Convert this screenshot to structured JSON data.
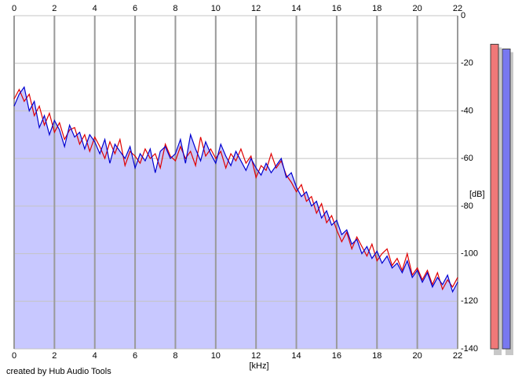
{
  "chart_data": {
    "type": "spectrum",
    "x": [
      0,
      0.25,
      0.5,
      0.75,
      1,
      1.25,
      1.5,
      1.75,
      2,
      2.25,
      2.5,
      2.75,
      3,
      3.25,
      3.5,
      3.75,
      4,
      4.25,
      4.5,
      4.75,
      5,
      5.25,
      5.5,
      5.75,
      6,
      6.25,
      6.5,
      6.75,
      7,
      7.25,
      7.5,
      7.75,
      8,
      8.25,
      8.5,
      8.75,
      9,
      9.25,
      9.5,
      9.75,
      10,
      10.25,
      10.5,
      10.75,
      11,
      11.25,
      11.5,
      11.75,
      12,
      12.25,
      12.5,
      12.75,
      13,
      13.25,
      13.5,
      13.75,
      14,
      14.25,
      14.5,
      14.75,
      15,
      15.25,
      15.5,
      15.75,
      16,
      16.25,
      16.5,
      16.75,
      17,
      17.25,
      17.5,
      17.75,
      18,
      18.25,
      18.5,
      18.75,
      19,
      19.25,
      19.5,
      19.75,
      20,
      20.25,
      20.5,
      20.75,
      21,
      21.25,
      21.5,
      21.75,
      22
    ],
    "series": [
      {
        "color": "#e00000",
        "values": [
          -35,
          -31,
          -36,
          -33,
          -42,
          -38,
          -46,
          -41,
          -49,
          -45,
          -52,
          -48,
          -47,
          -54,
          -50,
          -57,
          -51,
          -55,
          -60,
          -53,
          -58,
          -52,
          -63,
          -57,
          -59,
          -62,
          -56,
          -60,
          -58,
          -64,
          -54,
          -59,
          -61,
          -55,
          -60,
          -57,
          -63,
          -51,
          -59,
          -56,
          -60,
          -57,
          -64,
          -58,
          -61,
          -56,
          -62,
          -59,
          -68,
          -63,
          -65,
          -58,
          -64,
          -61,
          -67,
          -70,
          -74,
          -71,
          -78,
          -76,
          -83,
          -79,
          -87,
          -84,
          -90,
          -95,
          -91,
          -98,
          -93,
          -97,
          -101,
          -96,
          -103,
          -100,
          -98,
          -105,
          -102,
          -107,
          -100,
          -109,
          -106,
          -111,
          -107,
          -113,
          -108,
          -115,
          -111,
          -114,
          -110
        ]
      },
      {
        "color": "#0000d0",
        "fill": "#c8c8ff",
        "values": [
          -38,
          -33,
          -30,
          -40,
          -36,
          -47,
          -42,
          -50,
          -44,
          -48,
          -55,
          -46,
          -51,
          -49,
          -56,
          -50,
          -53,
          -58,
          -52,
          -62,
          -54,
          -57,
          -60,
          -55,
          -64,
          -58,
          -61,
          -56,
          -66,
          -57,
          -55,
          -60,
          -58,
          -52,
          -62,
          -50,
          -56,
          -61,
          -53,
          -58,
          -62,
          -54,
          -59,
          -63,
          -57,
          -61,
          -65,
          -60,
          -64,
          -67,
          -62,
          -66,
          -63,
          -60,
          -68,
          -66,
          -72,
          -76,
          -74,
          -80,
          -78,
          -85,
          -82,
          -88,
          -86,
          -92,
          -90,
          -96,
          -94,
          -100,
          -97,
          -102,
          -99,
          -104,
          -101,
          -106,
          -104,
          -108,
          -103,
          -110,
          -107,
          -112,
          -108,
          -114,
          -110,
          -113,
          -109,
          -116,
          -112
        ]
      }
    ],
    "xlim": [
      0,
      22
    ],
    "xticks": [
      0,
      2,
      4,
      6,
      8,
      10,
      12,
      14,
      16,
      18,
      20,
      22
    ],
    "ylim": [
      -140,
      0
    ],
    "yticks": [
      0,
      -20,
      -40,
      -60,
      -80,
      -100,
      -120,
      -140
    ],
    "xlabel": "[kHz]",
    "ylabel": "[dB]",
    "grid": true,
    "meters": [
      {
        "color": "#f07878",
        "value": -12
      },
      {
        "color": "#7878f0",
        "value": -14
      }
    ],
    "footer": "created by Hub Audio Tools"
  }
}
